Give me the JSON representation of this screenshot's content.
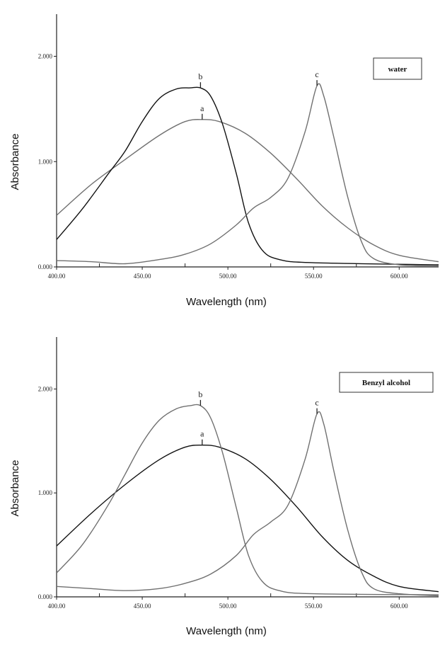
{
  "chart_data": [
    {
      "type": "line",
      "legend_label": "water",
      "legend_position": "top-right",
      "xlabel": "Wavelength (nm)",
      "ylabel": "Absorbance",
      "xlim": [
        400,
        623
      ],
      "ylim": [
        0,
        2.4
      ],
      "grid": false,
      "x_ticks": [
        400,
        450,
        500,
        550,
        600
      ],
      "x_tick_labels": [
        "400.00",
        "450.00",
        "500.00",
        "550.00",
        "600.00"
      ],
      "y_ticks": [
        0,
        1,
        2
      ],
      "y_tick_labels": [
        "0.000",
        "1.000",
        "2.000"
      ],
      "series": [
        {
          "name": "a",
          "color": "#707070",
          "points": [
            [
              400,
              0.49
            ],
            [
              420,
              0.78
            ],
            [
              440,
              1.02
            ],
            [
              460,
              1.25
            ],
            [
              475,
              1.38
            ],
            [
              485,
              1.4
            ],
            [
              495,
              1.38
            ],
            [
              510,
              1.27
            ],
            [
              525,
              1.08
            ],
            [
              540,
              0.84
            ],
            [
              555,
              0.58
            ],
            [
              570,
              0.37
            ],
            [
              585,
              0.21
            ],
            [
              600,
              0.11
            ],
            [
              623,
              0.05
            ]
          ]
        },
        {
          "name": "b",
          "color": "#111111",
          "points": [
            [
              400,
              0.26
            ],
            [
              415,
              0.55
            ],
            [
              430,
              0.88
            ],
            [
              440,
              1.1
            ],
            [
              450,
              1.38
            ],
            [
              460,
              1.6
            ],
            [
              470,
              1.69
            ],
            [
              478,
              1.7
            ],
            [
              484,
              1.7
            ],
            [
              490,
              1.62
            ],
            [
              497,
              1.35
            ],
            [
              505,
              0.88
            ],
            [
              512,
              0.42
            ],
            [
              520,
              0.16
            ],
            [
              530,
              0.07
            ],
            [
              550,
              0.04
            ],
            [
              623,
              0.02
            ]
          ]
        },
        {
          "name": "c",
          "color": "#707070",
          "points": [
            [
              400,
              0.06
            ],
            [
              420,
              0.05
            ],
            [
              440,
              0.03
            ],
            [
              460,
              0.07
            ],
            [
              475,
              0.12
            ],
            [
              490,
              0.22
            ],
            [
              505,
              0.4
            ],
            [
              515,
              0.56
            ],
            [
              525,
              0.66
            ],
            [
              535,
              0.84
            ],
            [
              545,
              1.28
            ],
            [
              552,
              1.72
            ],
            [
              556,
              1.62
            ],
            [
              562,
              1.22
            ],
            [
              570,
              0.66
            ],
            [
              578,
              0.24
            ],
            [
              585,
              0.08
            ],
            [
              600,
              0.02
            ],
            [
              623,
              0.01
            ]
          ]
        }
      ],
      "annotations": [
        {
          "text": "a",
          "series": "a",
          "x": 485,
          "y": 1.4
        },
        {
          "text": "b",
          "series": "b",
          "x": 484,
          "y": 1.7
        },
        {
          "text": "c",
          "series": "c",
          "x": 552,
          "y": 1.72
        }
      ]
    },
    {
      "type": "line",
      "legend_label": "Benzyl alcohol",
      "legend_position": "top-right",
      "xlabel": "Wavelength (nm)",
      "ylabel": "Absorbance",
      "xlim": [
        400,
        623
      ],
      "ylim": [
        0,
        2.5
      ],
      "grid": false,
      "x_ticks": [
        400,
        450,
        500,
        550,
        600
      ],
      "x_tick_labels": [
        "400.00",
        "450.00",
        "500.00",
        "550.00",
        "600.00"
      ],
      "y_ticks": [
        0,
        1,
        2
      ],
      "y_tick_labels": [
        "0.000",
        "1.000",
        "2.000"
      ],
      "series": [
        {
          "name": "a",
          "color": "#111111",
          "points": [
            [
              400,
              0.49
            ],
            [
              420,
              0.8
            ],
            [
              440,
              1.08
            ],
            [
              460,
              1.32
            ],
            [
              475,
              1.44
            ],
            [
              485,
              1.46
            ],
            [
              495,
              1.44
            ],
            [
              510,
              1.33
            ],
            [
              525,
              1.13
            ],
            [
              540,
              0.87
            ],
            [
              555,
              0.58
            ],
            [
              570,
              0.35
            ],
            [
              585,
              0.2
            ],
            [
              600,
              0.1
            ],
            [
              623,
              0.05
            ]
          ]
        },
        {
          "name": "b",
          "color": "#707070",
          "points": [
            [
              400,
              0.23
            ],
            [
              415,
              0.5
            ],
            [
              430,
              0.88
            ],
            [
              440,
              1.18
            ],
            [
              450,
              1.48
            ],
            [
              460,
              1.7
            ],
            [
              470,
              1.81
            ],
            [
              478,
              1.84
            ],
            [
              484,
              1.84
            ],
            [
              490,
              1.72
            ],
            [
              497,
              1.38
            ],
            [
              505,
              0.85
            ],
            [
              512,
              0.4
            ],
            [
              520,
              0.15
            ],
            [
              530,
              0.06
            ],
            [
              550,
              0.03
            ],
            [
              623,
              0.02
            ]
          ]
        },
        {
          "name": "c",
          "color": "#707070",
          "points": [
            [
              400,
              0.1
            ],
            [
              420,
              0.08
            ],
            [
              440,
              0.06
            ],
            [
              460,
              0.08
            ],
            [
              475,
              0.13
            ],
            [
              490,
              0.22
            ],
            [
              505,
              0.4
            ],
            [
              515,
              0.6
            ],
            [
              525,
              0.72
            ],
            [
              535,
              0.88
            ],
            [
              545,
              1.32
            ],
            [
              552,
              1.76
            ],
            [
              556,
              1.66
            ],
            [
              562,
              1.2
            ],
            [
              570,
              0.64
            ],
            [
              578,
              0.24
            ],
            [
              585,
              0.08
            ],
            [
              600,
              0.03
            ],
            [
              623,
              0.01
            ]
          ]
        }
      ],
      "annotations": [
        {
          "text": "a",
          "series": "a",
          "x": 485,
          "y": 1.46
        },
        {
          "text": "b",
          "series": "b",
          "x": 484,
          "y": 1.84
        },
        {
          "text": "c",
          "series": "c",
          "x": 552,
          "y": 1.76
        }
      ]
    }
  ]
}
